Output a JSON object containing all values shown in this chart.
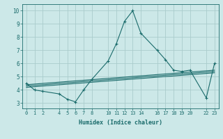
{
  "xlabel": "Humidex (Indice chaleur)",
  "bg_color": "#cce8e8",
  "grid_color": "#aacccc",
  "line_color": "#1a6b6b",
  "x_ticks": [
    0,
    1,
    2,
    4,
    5,
    6,
    7,
    8,
    10,
    11,
    12,
    13,
    14,
    16,
    17,
    18,
    19,
    20,
    22,
    23
  ],
  "y_ticks": [
    3,
    4,
    5,
    6,
    7,
    8,
    9,
    10
  ],
  "xlim": [
    -0.5,
    23.5
  ],
  "ylim": [
    2.6,
    10.5
  ],
  "main_x": [
    0,
    1,
    2,
    4,
    5,
    6,
    7,
    8,
    10,
    11,
    12,
    13,
    14,
    16,
    17,
    18,
    19,
    20,
    22,
    23
  ],
  "main_y": [
    4.5,
    4.0,
    3.9,
    3.7,
    3.3,
    3.1,
    4.0,
    4.8,
    6.2,
    7.5,
    9.2,
    10.0,
    8.3,
    7.0,
    6.3,
    5.5,
    5.4,
    5.5,
    3.4,
    6.0
  ],
  "line2_x": [
    0,
    23
  ],
  "line2_y": [
    4.4,
    5.5
  ],
  "line3_x": [
    0,
    23
  ],
  "line3_y": [
    4.3,
    5.4
  ],
  "line4_x": [
    0,
    23
  ],
  "line4_y": [
    4.2,
    5.3
  ]
}
